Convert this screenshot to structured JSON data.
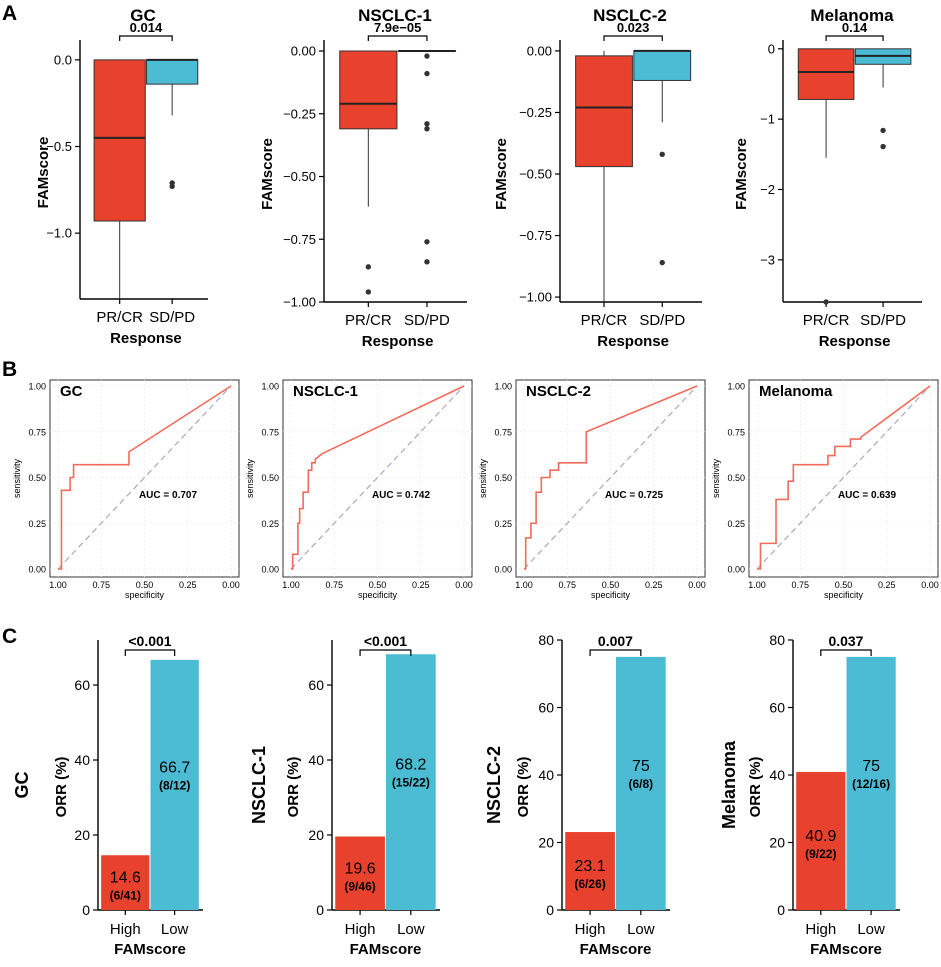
{
  "panel_labels": [
    "A",
    "B",
    "C"
  ],
  "colors": {
    "red": "#E8412E",
    "blue": "#4BBCD4",
    "roc": "#F26B5B",
    "diag": "#A5A9C2"
  },
  "chart_data": [
    {
      "type": "box",
      "panel": "A",
      "title": "GC",
      "xlabel": "Response",
      "ylabel": "FAMscore",
      "categories": [
        "PR/CR",
        "SD/PD"
      ],
      "ylim": [
        -1.38,
        0.08
      ],
      "yticks": [
        0.0,
        -0.5,
        -1.0
      ],
      "ytick_labels": [
        "0.0",
        "−0.5",
        "−1.0"
      ],
      "pvalue": "0.014",
      "boxes": [
        {
          "q1": -0.93,
          "median": -0.45,
          "q3": 0.0,
          "whisker_low": -1.38,
          "whisker_high": 0.0,
          "outliers": []
        },
        {
          "q1": -0.14,
          "median": 0.0,
          "q3": 0.0,
          "whisker_low": -0.32,
          "whisker_high": 0.0,
          "outliers": [
            -0.71,
            -0.73
          ]
        }
      ]
    },
    {
      "type": "box",
      "panel": "A",
      "title": "NSCLC-1",
      "xlabel": "Response",
      "ylabel": "FAMscore",
      "categories": [
        "PR/CR",
        "SD/PD"
      ],
      "ylim": [
        -1.0,
        0.02
      ],
      "yticks": [
        0.0,
        -0.25,
        -0.5,
        -0.75,
        -1.0
      ],
      "ytick_labels": [
        "0.00",
        "−0.25",
        "−0.50",
        "−0.75",
        "−1.00"
      ],
      "pvalue": "7.9e−05",
      "boxes": [
        {
          "q1": -0.31,
          "median": -0.21,
          "q3": 0.0,
          "whisker_low": -0.62,
          "whisker_high": 0.0,
          "outliers": [
            -0.86,
            -0.96
          ]
        },
        {
          "q1": 0.0,
          "median": 0.0,
          "q3": 0.0,
          "whisker_low": 0.0,
          "whisker_high": 0.0,
          "outliers": [
            -0.02,
            -0.09,
            -0.29,
            -0.31,
            -0.76,
            -0.84
          ]
        }
      ]
    },
    {
      "type": "box",
      "panel": "A",
      "title": "NSCLC-2",
      "xlabel": "Response",
      "ylabel": "FAMscore",
      "categories": [
        "PR/CR",
        "SD/PD"
      ],
      "ylim": [
        -1.02,
        0.02
      ],
      "yticks": [
        0.0,
        -0.25,
        -0.5,
        -0.75,
        -1.0
      ],
      "ytick_labels": [
        "0.00",
        "−0.25",
        "−0.50",
        "−0.75",
        "−1.00"
      ],
      "pvalue": "0.023",
      "boxes": [
        {
          "q1": -0.47,
          "median": -0.23,
          "q3": -0.02,
          "whisker_low": -1.02,
          "whisker_high": 0.0,
          "outliers": []
        },
        {
          "q1": -0.12,
          "median": 0.0,
          "q3": 0.0,
          "whisker_low": -0.29,
          "whisker_high": 0.0,
          "outliers": [
            -0.42,
            -0.86
          ]
        }
      ]
    },
    {
      "type": "box",
      "panel": "A",
      "title": "Melanoma",
      "xlabel": "Response",
      "ylabel": "FAMscore",
      "categories": [
        "PR/CR",
        "SD/PD"
      ],
      "ylim": [
        -3.6,
        0.04
      ],
      "yticks": [
        0,
        -1,
        -2,
        -3
      ],
      "ytick_labels": [
        "0",
        "−1",
        "−2",
        "−3"
      ],
      "pvalue": "0.14",
      "boxes": [
        {
          "q1": -0.72,
          "median": -0.33,
          "q3": 0.0,
          "whisker_low": -1.55,
          "whisker_high": 0.0,
          "outliers": [
            -3.6
          ]
        },
        {
          "q1": -0.22,
          "median": -0.1,
          "q3": 0.0,
          "whisker_low": -0.55,
          "whisker_high": 0.0,
          "outliers": [
            -1.16,
            -1.39
          ]
        }
      ]
    },
    {
      "type": "line",
      "panel": "B",
      "title": "GC",
      "auc": "AUC = 0.707",
      "xlabel": "specificity",
      "ylabel": "sensitivity",
      "xlim": [
        1.0,
        0.0
      ],
      "ylim": [
        0.0,
        1.0
      ],
      "ticks": [
        "1.00",
        "0.75",
        "0.50",
        "0.25",
        "0.00"
      ],
      "roc": {
        "specificity": [
          1.0,
          0.98,
          0.98,
          0.93,
          0.93,
          0.91,
          0.91,
          0.59,
          0.59,
          0.0
        ],
        "sensitivity": [
          0.0,
          0.0,
          0.43,
          0.43,
          0.5,
          0.5,
          0.57,
          0.57,
          0.64,
          1.0
        ]
      }
    },
    {
      "type": "line",
      "panel": "B",
      "title": "NSCLC-1",
      "auc": "AUC = 0.742",
      "xlabel": "specificity",
      "ylabel": "sensitivity",
      "xlim": [
        1.0,
        0.0
      ],
      "ylim": [
        0.0,
        1.0
      ],
      "ticks": [
        "1.00",
        "0.75",
        "0.50",
        "0.25",
        "0.00"
      ],
      "roc": {
        "specificity": [
          1.0,
          0.99,
          0.99,
          0.96,
          0.96,
          0.95,
          0.95,
          0.93,
          0.93,
          0.9,
          0.9,
          0.88,
          0.88,
          0.86,
          0.86,
          0.82,
          0.0
        ],
        "sensitivity": [
          0.0,
          0.0,
          0.08,
          0.08,
          0.25,
          0.25,
          0.33,
          0.33,
          0.42,
          0.42,
          0.54,
          0.54,
          0.58,
          0.58,
          0.6,
          0.63,
          1.0
        ]
      }
    },
    {
      "type": "line",
      "panel": "B",
      "title": "NSCLC-2",
      "auc": "AUC = 0.725",
      "xlabel": "specificity",
      "ylabel": "sensitivity",
      "xlim": [
        1.0,
        0.0
      ],
      "ylim": [
        0.0,
        1.0
      ],
      "ticks": [
        "1.00",
        "0.75",
        "0.50",
        "0.25",
        "0.00"
      ],
      "roc": {
        "specificity": [
          1.0,
          0.99,
          0.99,
          0.96,
          0.96,
          0.93,
          0.93,
          0.9,
          0.9,
          0.85,
          0.85,
          0.8,
          0.8,
          0.72,
          0.72,
          0.64,
          0.64,
          0.0
        ],
        "sensitivity": [
          0.0,
          0.0,
          0.17,
          0.17,
          0.25,
          0.25,
          0.42,
          0.42,
          0.5,
          0.5,
          0.54,
          0.54,
          0.58,
          0.58,
          0.58,
          0.58,
          0.75,
          1.0
        ]
      }
    },
    {
      "type": "line",
      "panel": "B",
      "title": "Melanoma",
      "auc": "AUC = 0.639",
      "xlabel": "specificity",
      "ylabel": "sensitivity",
      "xlim": [
        1.0,
        0.0
      ],
      "ylim": [
        0.0,
        1.0
      ],
      "ticks": [
        "1.00",
        "0.75",
        "0.50",
        "0.25",
        "0.00"
      ],
      "roc": {
        "specificity": [
          1.0,
          0.98,
          0.98,
          0.89,
          0.89,
          0.86,
          0.86,
          0.82,
          0.82,
          0.79,
          0.79,
          0.59,
          0.59,
          0.55,
          0.55,
          0.46,
          0.46,
          0.4,
          0.4,
          0.0
        ],
        "sensitivity": [
          0.0,
          0.0,
          0.14,
          0.14,
          0.38,
          0.38,
          0.38,
          0.38,
          0.48,
          0.48,
          0.57,
          0.57,
          0.62,
          0.62,
          0.67,
          0.67,
          0.71,
          0.71,
          0.72,
          1.0
        ]
      }
    },
    {
      "type": "bar",
      "panel": "C",
      "title": "GC",
      "xlabel": "FAMscore",
      "ylabel": "ORR (%)",
      "categories": [
        "High",
        "Low"
      ],
      "values": [
        14.6,
        66.7
      ],
      "labels": [
        "14.6",
        "66.7"
      ],
      "counts": [
        "(6/41)",
        "(8/12)"
      ],
      "ylim": [
        0,
        72
      ],
      "yticks": [
        0,
        20,
        40,
        60
      ],
      "pvalue": "<0.001"
    },
    {
      "type": "bar",
      "panel": "C",
      "title": "NSCLC-1",
      "xlabel": "FAMscore",
      "ylabel": "ORR (%)",
      "categories": [
        "High",
        "Low"
      ],
      "values": [
        19.6,
        68.2
      ],
      "labels": [
        "19.6",
        "68.2"
      ],
      "counts": [
        "(9/46)",
        "(15/22)"
      ],
      "ylim": [
        0,
        72
      ],
      "yticks": [
        0,
        20,
        40,
        60
      ],
      "pvalue": "<0.001"
    },
    {
      "type": "bar",
      "panel": "C",
      "title": "NSCLC-2",
      "xlabel": "FAMscore",
      "ylabel": "ORR (%)",
      "categories": [
        "High",
        "Low"
      ],
      "values": [
        23.1,
        75
      ],
      "labels": [
        "23.1",
        "75"
      ],
      "counts": [
        "(6/26)",
        "(6/8)"
      ],
      "ylim": [
        0,
        80
      ],
      "yticks": [
        0,
        20,
        40,
        60,
        80
      ],
      "pvalue": "0.007"
    },
    {
      "type": "bar",
      "panel": "C",
      "title": "Melanoma",
      "xlabel": "FAMscore",
      "ylabel": "ORR (%)",
      "categories": [
        "High",
        "Low"
      ],
      "values": [
        40.9,
        75
      ],
      "labels": [
        "40.9",
        "75"
      ],
      "counts": [
        "(9/22)",
        "(12/16)"
      ],
      "ylim": [
        0,
        80
      ],
      "yticks": [
        0,
        20,
        40,
        60,
        80
      ],
      "pvalue": "0.037"
    }
  ]
}
